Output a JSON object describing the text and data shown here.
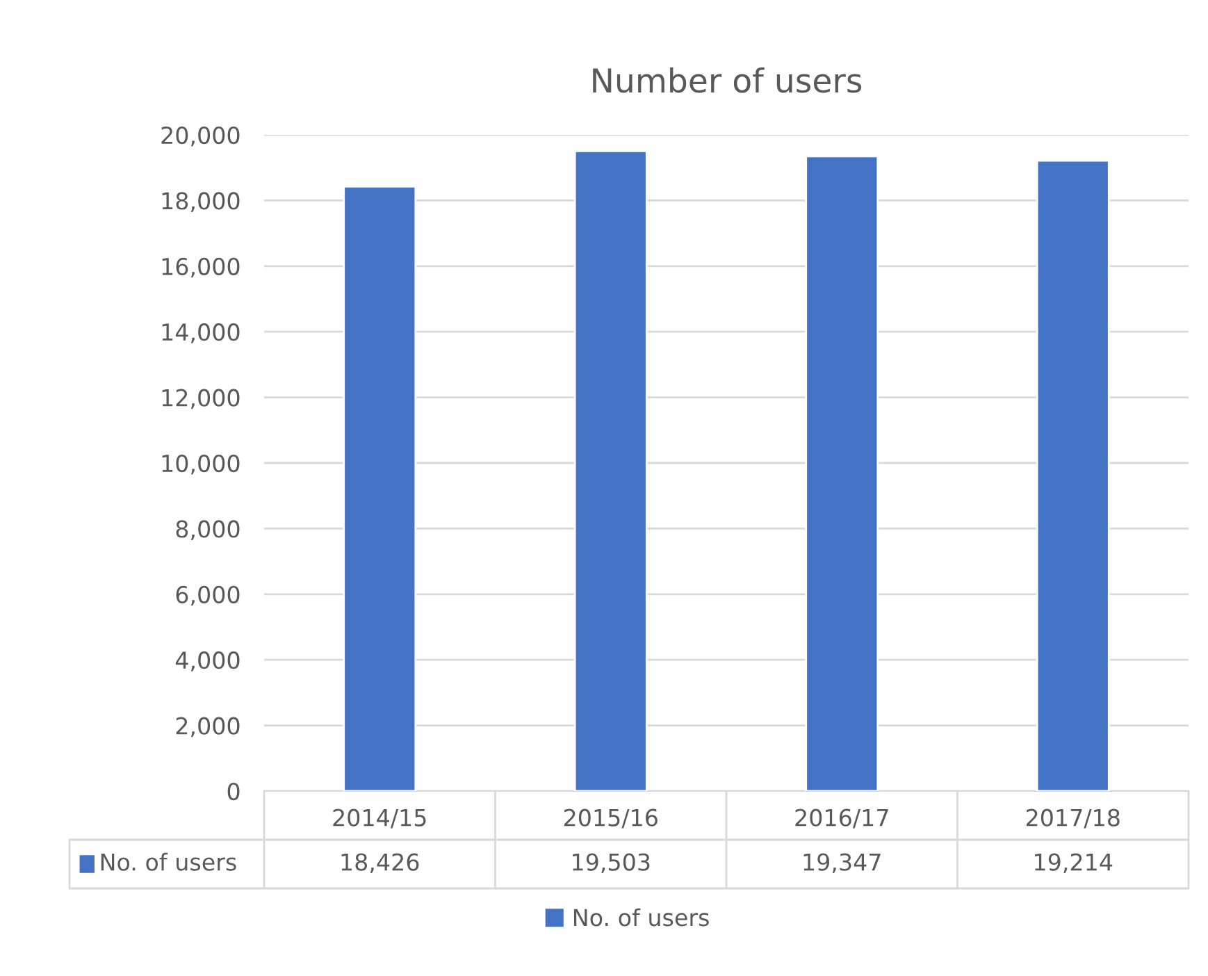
{
  "chart_data": {
    "type": "bar",
    "title": "Number of users",
    "categories": [
      "2014/15",
      "2015/16",
      "2016/17",
      "2017/18"
    ],
    "series": [
      {
        "name": "No. of users",
        "color": "#4472c4",
        "values": [
          18426,
          19503,
          19347,
          19214
        ],
        "value_labels": [
          "18,426",
          "19,503",
          "19,347",
          "19,214"
        ]
      }
    ],
    "ylim": [
      0,
      20000
    ],
    "yticks": [
      0,
      {
        "value": 2000,
        "label": "2,000"
      },
      {
        "value": 4000,
        "label": "4,000"
      },
      {
        "value": 6000,
        "label": "6,000"
      },
      {
        "value": 8000,
        "label": "8,000"
      },
      {
        "value": 10000,
        "label": "10,000"
      },
      {
        "value": 12000,
        "label": "12,000"
      },
      {
        "value": 14000,
        "label": "14,000"
      },
      {
        "value": 16000,
        "label": "16,000"
      },
      {
        "value": 18000,
        "label": "18,000"
      },
      {
        "value": 20000,
        "label": "20,000"
      }
    ],
    "grid": "y",
    "legend": "bottom"
  }
}
